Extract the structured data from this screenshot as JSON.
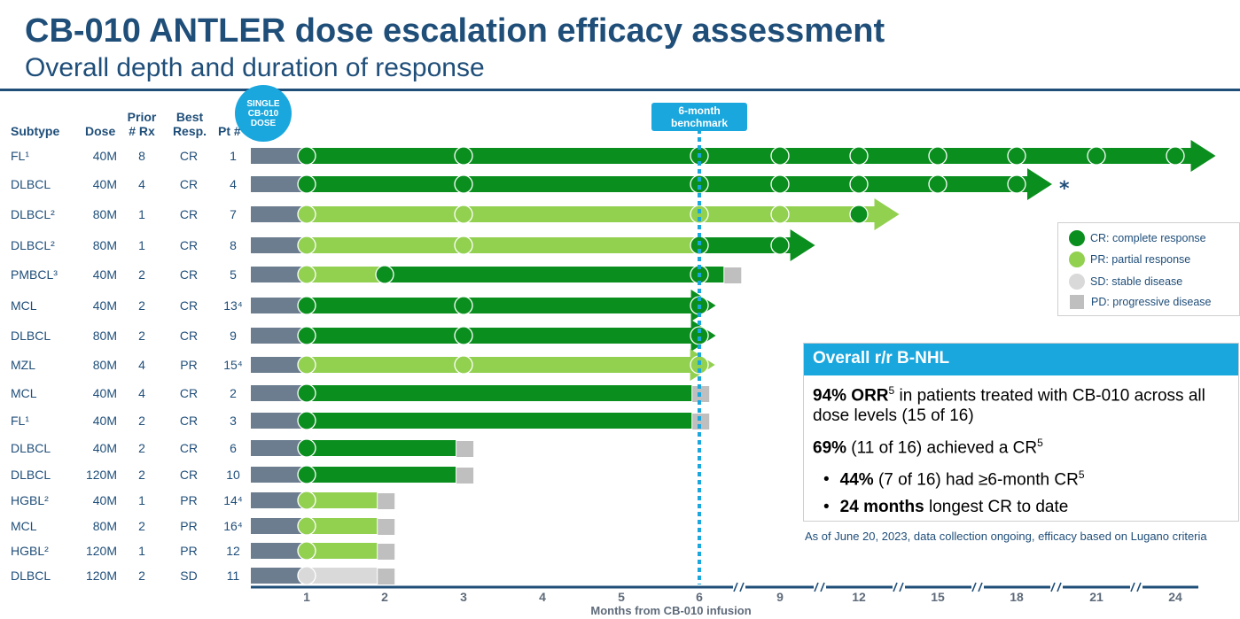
{
  "header": {
    "title": "CB-010 ANTLER dose escalation efficacy assessment",
    "subtitle": "Overall depth and duration of response"
  },
  "columns": {
    "subtype": "Subtype",
    "dose": "Dose",
    "prior_l1": "Prior",
    "prior_l2": "# Rx",
    "best_l1": "Best",
    "best_l2": "Resp.",
    "pt": "Pt #"
  },
  "badge": {
    "line1": "SINGLE",
    "line2": "CB-010",
    "line3": "DOSE"
  },
  "benchmark": {
    "line1": "6-month",
    "line2": "benchmark"
  },
  "legend": {
    "cr": "CR: complete response",
    "pr": "PR: partial response",
    "sd": "SD: stable disease",
    "pd": "PD: progressive disease"
  },
  "overall": {
    "heading": "Overall r/r B-NHL",
    "orr_bold": "94% ORR",
    "orr_sup": "5",
    "orr_text": " in patients treated with CB-010 across all dose levels (15 of 16)",
    "cr_bold": "69%",
    "cr_text": " (11 of 16) achieved a CR",
    "cr_sup": "5",
    "b1_bold": "44%",
    "b1_text": " (7 of 16) had ≥6-month CR",
    "b1_sup": "5",
    "b2_bold": "24 months",
    "b2_text": " longest CR to date"
  },
  "footnote": "As of June 20, 2023, data collection ongoing, efficacy based on Lugano criteria",
  "colors": {
    "cr": "#0a8f1e",
    "pr": "#92d050",
    "sd": "#d9d9d9",
    "pd": "#bfbfbf",
    "pre": "#6b7d8e",
    "accent": "#1aa7de",
    "navy": "#1f4e79"
  },
  "chart_data": {
    "type": "swimmer",
    "xlabel": "Months from CB-010 infusion",
    "x_ticks": [
      "1",
      "2",
      "3",
      "4",
      "5",
      "6",
      "9",
      "12",
      "15",
      "18",
      "21",
      "24"
    ],
    "benchmark_month": 6,
    "rows": [
      {
        "subtype": "FL¹",
        "dose": "40M",
        "prior": "8",
        "best": "CR",
        "pt": "1",
        "segments": [
          {
            "resp": "CR",
            "from": 1,
            "to": 24
          }
        ],
        "assessments": [
          [
            1,
            "CR"
          ],
          [
            3,
            "CR"
          ],
          [
            6,
            "CR"
          ],
          [
            9,
            "CR"
          ],
          [
            12,
            "CR"
          ],
          [
            15,
            "CR"
          ],
          [
            18,
            "CR"
          ],
          [
            21,
            "CR"
          ],
          [
            24,
            "CR"
          ]
        ],
        "ongoing": true,
        "end": 25.4,
        "pd": false,
        "star": false
      },
      {
        "subtype": "DLBCL",
        "dose": "40M",
        "prior": "4",
        "best": "CR",
        "pt": "4",
        "segments": [
          {
            "resp": "CR",
            "from": 1,
            "to": 18
          }
        ],
        "assessments": [
          [
            1,
            "CR"
          ],
          [
            3,
            "CR"
          ],
          [
            6,
            "CR"
          ],
          [
            9,
            "CR"
          ],
          [
            12,
            "CR"
          ],
          [
            15,
            "CR"
          ],
          [
            18,
            "CR"
          ]
        ],
        "ongoing": true,
        "end": 19.2,
        "pd": false,
        "star": true
      },
      {
        "subtype": "DLBCL²",
        "dose": "80M",
        "prior": "1",
        "best": "CR",
        "pt": "7",
        "segments": [
          {
            "resp": "PR",
            "from": 1,
            "to": 12
          }
        ],
        "assessments": [
          [
            1,
            "PR"
          ],
          [
            3,
            "PR"
          ],
          [
            6,
            "PR"
          ],
          [
            9,
            "PR"
          ],
          [
            12,
            "CR"
          ]
        ],
        "ongoing": true,
        "end": 13.4,
        "pd": false,
        "star": false
      },
      {
        "subtype": "DLBCL²",
        "dose": "80M",
        "prior": "1",
        "best": "CR",
        "pt": "8",
        "segments": [
          {
            "resp": "PR",
            "from": 1,
            "to": 6
          },
          {
            "resp": "CR",
            "from": 6,
            "to": 9
          }
        ],
        "assessments": [
          [
            1,
            "PR"
          ],
          [
            3,
            "PR"
          ],
          [
            6,
            "CR"
          ],
          [
            9,
            "CR"
          ]
        ],
        "ongoing": true,
        "end": 10.2,
        "pd": false,
        "star": false
      },
      {
        "subtype": "PMBCL³",
        "dose": "40M",
        "prior": "2",
        "best": "CR",
        "pt": "5",
        "segments": [
          {
            "resp": "PR",
            "from": 1,
            "to": 2
          },
          {
            "resp": "CR",
            "from": 2,
            "to": 6.9
          }
        ],
        "assessments": [
          [
            1,
            "PR"
          ],
          [
            2,
            "CR"
          ],
          [
            6,
            "CR"
          ]
        ],
        "ongoing": false,
        "end": 6.9,
        "pd": true,
        "star": false
      },
      {
        "subtype": "MCL",
        "dose": "40M",
        "prior": "2",
        "best": "CR",
        "pt": "13⁴",
        "segments": [
          {
            "resp": "CR",
            "from": 1,
            "to": 6
          }
        ],
        "assessments": [
          [
            1,
            "CR"
          ],
          [
            3,
            "CR"
          ],
          [
            6,
            "CR"
          ]
        ],
        "ongoing": true,
        "end": 6.48,
        "pd": false,
        "star": false
      },
      {
        "subtype": "DLBCL",
        "dose": "80M",
        "prior": "2",
        "best": "CR",
        "pt": "9",
        "segments": [
          {
            "resp": "CR",
            "from": 1,
            "to": 6
          }
        ],
        "assessments": [
          [
            1,
            "CR"
          ],
          [
            3,
            "CR"
          ],
          [
            6,
            "CR"
          ]
        ],
        "ongoing": true,
        "end": 6.48,
        "pd": false,
        "star": false
      },
      {
        "subtype": "MZL",
        "dose": "80M",
        "prior": "4",
        "best": "PR",
        "pt": "15⁴",
        "segments": [
          {
            "resp": "PR",
            "from": 1,
            "to": 6
          }
        ],
        "assessments": [
          [
            1,
            "PR"
          ],
          [
            3,
            "PR"
          ],
          [
            6,
            "PR"
          ]
        ],
        "ongoing": true,
        "end": 6.45,
        "pd": false,
        "star": false
      },
      {
        "subtype": "MCL",
        "dose": "40M",
        "prior": "4",
        "best": "CR",
        "pt": "2",
        "segments": [
          {
            "resp": "CR",
            "from": 1,
            "to": 5.9
          }
        ],
        "assessments": [
          [
            1,
            "CR"
          ]
        ],
        "ongoing": false,
        "end": 5.9,
        "pd": true,
        "star": false
      },
      {
        "subtype": "FL¹",
        "dose": "40M",
        "prior": "2",
        "best": "CR",
        "pt": "3",
        "segments": [
          {
            "resp": "CR",
            "from": 1,
            "to": 5.9
          }
        ],
        "assessments": [
          [
            1,
            "CR"
          ]
        ],
        "ongoing": false,
        "end": 5.9,
        "pd": true,
        "star": false
      },
      {
        "subtype": "DLBCL",
        "dose": "40M",
        "prior": "2",
        "best": "CR",
        "pt": "6",
        "segments": [
          {
            "resp": "CR",
            "from": 1,
            "to": 2.9
          }
        ],
        "assessments": [
          [
            1,
            "CR"
          ]
        ],
        "ongoing": false,
        "end": 2.9,
        "pd": true,
        "star": false
      },
      {
        "subtype": "DLBCL",
        "dose": "120M",
        "prior": "2",
        "best": "CR",
        "pt": "10",
        "segments": [
          {
            "resp": "CR",
            "from": 1,
            "to": 2.9
          }
        ],
        "assessments": [
          [
            1,
            "CR"
          ]
        ],
        "ongoing": false,
        "end": 2.9,
        "pd": true,
        "star": false
      },
      {
        "subtype": "HGBL²",
        "dose": "40M",
        "prior": "1",
        "best": "PR",
        "pt": "14⁴",
        "segments": [
          {
            "resp": "PR",
            "from": 1,
            "to": 1.9
          }
        ],
        "assessments": [
          [
            1,
            "PR"
          ]
        ],
        "ongoing": false,
        "end": 1.9,
        "pd": true,
        "star": false
      },
      {
        "subtype": "MCL",
        "dose": "80M",
        "prior": "2",
        "best": "PR",
        "pt": "16⁴",
        "segments": [
          {
            "resp": "PR",
            "from": 1,
            "to": 1.9
          }
        ],
        "assessments": [
          [
            1,
            "PR"
          ]
        ],
        "ongoing": false,
        "end": 1.9,
        "pd": true,
        "star": false
      },
      {
        "subtype": "HGBL²",
        "dose": "120M",
        "prior": "1",
        "best": "PR",
        "pt": "12",
        "segments": [
          {
            "resp": "PR",
            "from": 1,
            "to": 1.9
          }
        ],
        "assessments": [
          [
            1,
            "PR"
          ]
        ],
        "ongoing": false,
        "end": 1.9,
        "pd": true,
        "star": false
      },
      {
        "subtype": "DLBCL",
        "dose": "120M",
        "prior": "2",
        "best": "SD",
        "pt": "11",
        "segments": [
          {
            "resp": "SD",
            "from": 1,
            "to": 1.9
          }
        ],
        "assessments": [
          [
            1,
            "SD"
          ]
        ],
        "ongoing": false,
        "end": 1.9,
        "pd": true,
        "star": false
      }
    ]
  }
}
